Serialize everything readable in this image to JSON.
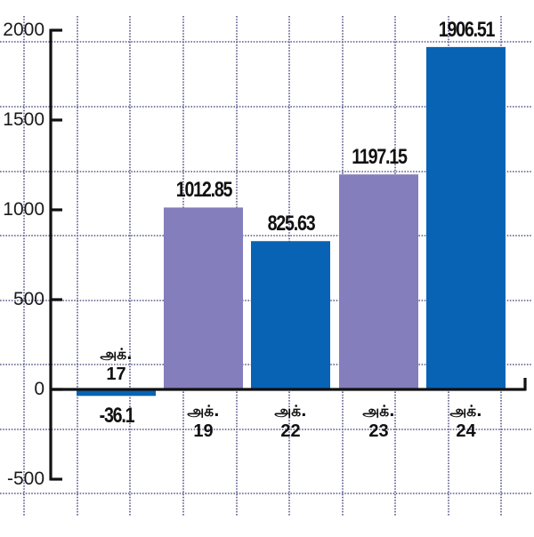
{
  "chart_data": {
    "type": "bar",
    "title": "",
    "xlabel": "",
    "ylabel": "",
    "categories": [
      "அக். 17",
      "அக். 19",
      "அக். 22",
      "அக். 23",
      "அக். 24"
    ],
    "category_lines": [
      [
        "அக்.",
        "17"
      ],
      [
        "அக்.",
        "19"
      ],
      [
        "அக்.",
        "22"
      ],
      [
        "அக்.",
        "23"
      ],
      [
        "அக்.",
        "24"
      ]
    ],
    "values": [
      -36.1,
      1012.85,
      825.63,
      1197.15,
      1906.51
    ],
    "value_labels": [
      "-36.1",
      "1012.85",
      "825.63",
      "1197.15",
      "1906.51"
    ],
    "bar_colors": [
      "#0863B4",
      "#847EBC",
      "#0863B4",
      "#847EBC",
      "#0863B4"
    ],
    "ylim": [
      -500,
      2000
    ],
    "yticks": [
      2000,
      1500,
      1000,
      500,
      0,
      -500
    ],
    "ytick_labels": [
      "2000",
      "1500",
      "1000",
      "500",
      "0",
      "-500"
    ],
    "grid": true,
    "grid_style": "dotted",
    "legend": null
  },
  "colors": {
    "blue": "#0863B4",
    "purple": "#847EBC",
    "axis": "#111111",
    "grid": "#5a5a8a",
    "text": "#111111"
  }
}
